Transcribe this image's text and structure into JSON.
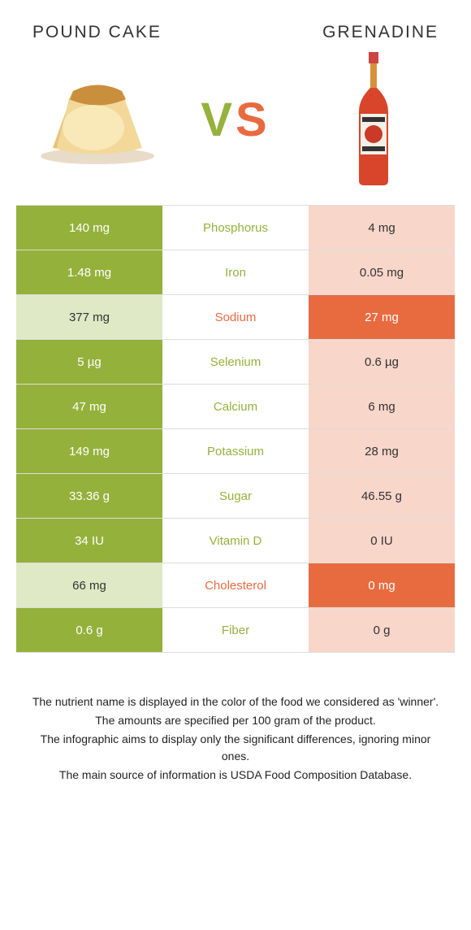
{
  "header": {
    "left": "POUND CAKE",
    "right": "GRENADINE"
  },
  "vs": {
    "v": "V",
    "s": "S"
  },
  "colors": {
    "green_bg": "#94b13b",
    "orange_bg": "#e86b3f",
    "green_light": "#dfe9c5",
    "orange_light": "#f8d6ca",
    "green_txt": "#94b13b",
    "orange_txt": "#e86b3f"
  },
  "rows": [
    {
      "left": "140 mg",
      "mid": "Phosphorus",
      "right": "4 mg",
      "winner": "left"
    },
    {
      "left": "1.48 mg",
      "mid": "Iron",
      "right": "0.05 mg",
      "winner": "left"
    },
    {
      "left": "377 mg",
      "mid": "Sodium",
      "right": "27 mg",
      "winner": "right"
    },
    {
      "left": "5 µg",
      "mid": "Selenium",
      "right": "0.6 µg",
      "winner": "left"
    },
    {
      "left": "47 mg",
      "mid": "Calcium",
      "right": "6 mg",
      "winner": "left"
    },
    {
      "left": "149 mg",
      "mid": "Potassium",
      "right": "28 mg",
      "winner": "left"
    },
    {
      "left": "33.36 g",
      "mid": "Sugar",
      "right": "46.55 g",
      "winner": "left"
    },
    {
      "left": "34 IU",
      "mid": "Vitamin D",
      "right": "0 IU",
      "winner": "left"
    },
    {
      "left": "66 mg",
      "mid": "Cholesterol",
      "right": "0 mg",
      "winner": "right"
    },
    {
      "left": "0.6 g",
      "mid": "Fiber",
      "right": "0 g",
      "winner": "left"
    }
  ],
  "footer": {
    "l1": "The nutrient name is displayed in the color of the food we considered as 'winner'.",
    "l2": "The amounts are specified per 100 gram of the product.",
    "l3": "The infographic aims to display only the significant differences, ignoring minor ones.",
    "l4": "The main source of information is USDA Food Composition Database."
  }
}
